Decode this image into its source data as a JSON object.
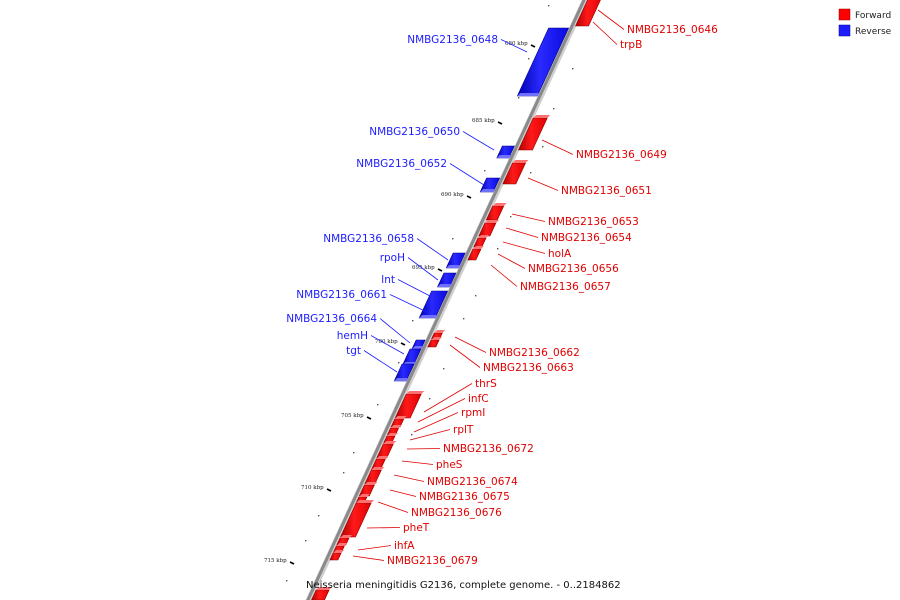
{
  "legend": {
    "forward_label": "Forward",
    "reverse_label": "Reverse",
    "forward_color": "#ff0000",
    "reverse_color": "#1c1cff"
  },
  "footer": "Neisseria meningitidis G2136, complete genome. - 0..2184862",
  "ticks": [
    "680 kbp",
    "685 kbp",
    "690 kbp",
    "695 kbp",
    "700 kbp",
    "705 kbp",
    "710 kbp",
    "715 kbp"
  ],
  "genes_reverse": [
    "NMBG2136_0648",
    "NMBG2136_0650",
    "NMBG2136_0652",
    "NMBG2136_0658",
    "rpoH",
    "lnt",
    "NMBG2136_0661",
    "NMBG2136_0664",
    "hemH",
    "tgt"
  ],
  "genes_forward": [
    "NMBG2136_0646",
    "trpB",
    "NMBG2136_0649",
    "NMBG2136_0651",
    "NMBG2136_0653",
    "NMBG2136_0654",
    "holA",
    "NMBG2136_0656",
    "NMBG2136_0657",
    "NMBG2136_0662",
    "NMBG2136_0663",
    "thrS",
    "infC",
    "rpmI",
    "rplT",
    "NMBG2136_0672",
    "pheS",
    "NMBG2136_0674",
    "NMBG2136_0675",
    "NMBG2136_0676",
    "pheT",
    "ihfA",
    "NMBG2136_0679"
  ]
}
